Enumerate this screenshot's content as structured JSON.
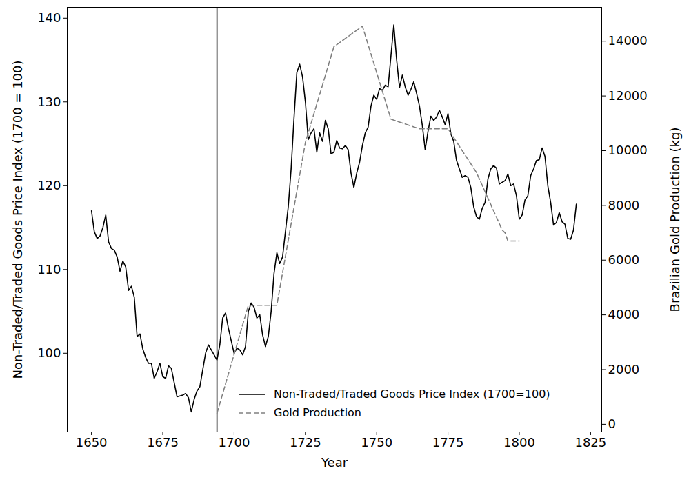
{
  "chart_data": {
    "type": "line",
    "xlabel": "Year",
    "ylabel": "Non-Traded/Traded Goods Price Index (1700 = 100)",
    "y2label": "Brazilian Gold Production (kg)",
    "xlim": [
      1641.5,
      1828.9
    ],
    "xticks": [
      1650,
      1675,
      1700,
      1725,
      1750,
      1775,
      1800,
      1825
    ],
    "ylim": [
      90.6,
      141.3
    ],
    "yticks": [
      100,
      110,
      120,
      130,
      140
    ],
    "y2lim": [
      -280,
      15240
    ],
    "y2ticks": [
      0,
      2000,
      4000,
      6000,
      8000,
      10000,
      12000,
      14000
    ],
    "vlines": [
      1694
    ],
    "legend": "lower right",
    "grid": false,
    "series": [
      {
        "name": "Non-Traded/Traded Goods Price Index (1700=100)",
        "color": "#000000",
        "line_style": "solid",
        "x": [
          1650,
          1651,
          1652,
          1653,
          1654,
          1655,
          1656,
          1657,
          1658,
          1659,
          1660,
          1661,
          1662,
          1663,
          1664,
          1665,
          1666,
          1667,
          1668,
          1669,
          1670,
          1671,
          1672,
          1673,
          1674,
          1675,
          1676,
          1677,
          1678,
          1679,
          1680,
          1681,
          1682,
          1683,
          1684,
          1685,
          1686,
          1687,
          1688,
          1689,
          1690,
          1691,
          1692,
          1693,
          1694,
          1695,
          1696,
          1697,
          1698,
          1699,
          1700,
          1701,
          1702,
          1703,
          1704,
          1705,
          1706,
          1707,
          1708,
          1709,
          1710,
          1711,
          1712,
          1713,
          1714,
          1715,
          1716,
          1717,
          1718,
          1719,
          1720,
          1721,
          1722,
          1723,
          1724,
          1725,
          1726,
          1727,
          1728,
          1729,
          1730,
          1731,
          1732,
          1733,
          1734,
          1735,
          1736,
          1737,
          1738,
          1739,
          1740,
          1741,
          1742,
          1743,
          1744,
          1745,
          1746,
          1747,
          1748,
          1749,
          1750,
          1751,
          1752,
          1753,
          1754,
          1755,
          1756,
          1757,
          1758,
          1759,
          1760,
          1761,
          1762,
          1763,
          1764,
          1765,
          1766,
          1767,
          1768,
          1769,
          1770,
          1771,
          1772,
          1773,
          1774,
          1775,
          1776,
          1777,
          1778,
          1779,
          1780,
          1781,
          1782,
          1783,
          1784,
          1785,
          1786,
          1787,
          1788,
          1789,
          1790,
          1791,
          1792,
          1793,
          1794,
          1795,
          1796,
          1797,
          1798,
          1799,
          1800,
          1801,
          1802,
          1803,
          1804,
          1805,
          1806,
          1807,
          1808,
          1809,
          1810,
          1811,
          1812,
          1813,
          1814,
          1815,
          1816,
          1817,
          1818,
          1819,
          1820
        ],
        "values": [
          117,
          114.5,
          113.7,
          114,
          115,
          116.5,
          113.3,
          112.5,
          112.3,
          111.5,
          109.8,
          111,
          110.3,
          107.5,
          108,
          106.7,
          102,
          102.3,
          100.5,
          99.5,
          98.8,
          98.8,
          97,
          97.8,
          98.8,
          97.2,
          97,
          98.5,
          98.2,
          96.5,
          94.8,
          94.9,
          95,
          95.2,
          94.7,
          93,
          94.5,
          95.5,
          96,
          98,
          100,
          101,
          100.4,
          99.8,
          99.2,
          101,
          104.2,
          104.8,
          103,
          101.5,
          100,
          100.6,
          100.4,
          99.8,
          100.8,
          105,
          106,
          105.5,
          104.2,
          104.6,
          102.2,
          100.8,
          102,
          105,
          109.5,
          112,
          110.7,
          111.5,
          114.5,
          117.5,
          122,
          128,
          133.5,
          134.5,
          133,
          130,
          125.5,
          126.3,
          126.8,
          124,
          126.3,
          125.3,
          127.8,
          126.8,
          123.8,
          124,
          125.4,
          124.5,
          124.4,
          124.8,
          124.3,
          121.5,
          119.8,
          121.5,
          122.8,
          124.8,
          126.3,
          127,
          129.5,
          130.8,
          130.3,
          131.6,
          131.4,
          132,
          131.8,
          135.5,
          139.2,
          135,
          131.7,
          133.2,
          131.8,
          130.8,
          131.5,
          132.4,
          131,
          129.5,
          127.2,
          124.3,
          126.5,
          128.3,
          127.8,
          128.2,
          129,
          128.2,
          127.3,
          128.6,
          126.2,
          125.3,
          123,
          122,
          121,
          121.2,
          121,
          119.8,
          117.5,
          116.3,
          116,
          117.3,
          118,
          120.8,
          122,
          122.4,
          122.1,
          120.2,
          120.4,
          120.6,
          121.4,
          120,
          120.2,
          118.8,
          116,
          116.5,
          118.3,
          118.8,
          121.2,
          122,
          123,
          123.1,
          124.5,
          123.5,
          120,
          118,
          115.3,
          115.6,
          116.8,
          115.7,
          115.4,
          113.7,
          113.6,
          114.7,
          117.8
        ]
      },
      {
        "name": "Gold Production",
        "color": "#808080",
        "line_style": "dashed",
        "axis": "y2",
        "x": [
          1694,
          1705,
          1715,
          1725,
          1735,
          1745,
          1755,
          1765,
          1775,
          1785,
          1794,
          1795,
          1796,
          1800
        ],
        "values": [
          400,
          4350,
          4350,
          10300,
          13800,
          14550,
          11150,
          10800,
          10800,
          9200,
          7100,
          7000,
          6700,
          6700
        ]
      }
    ]
  }
}
